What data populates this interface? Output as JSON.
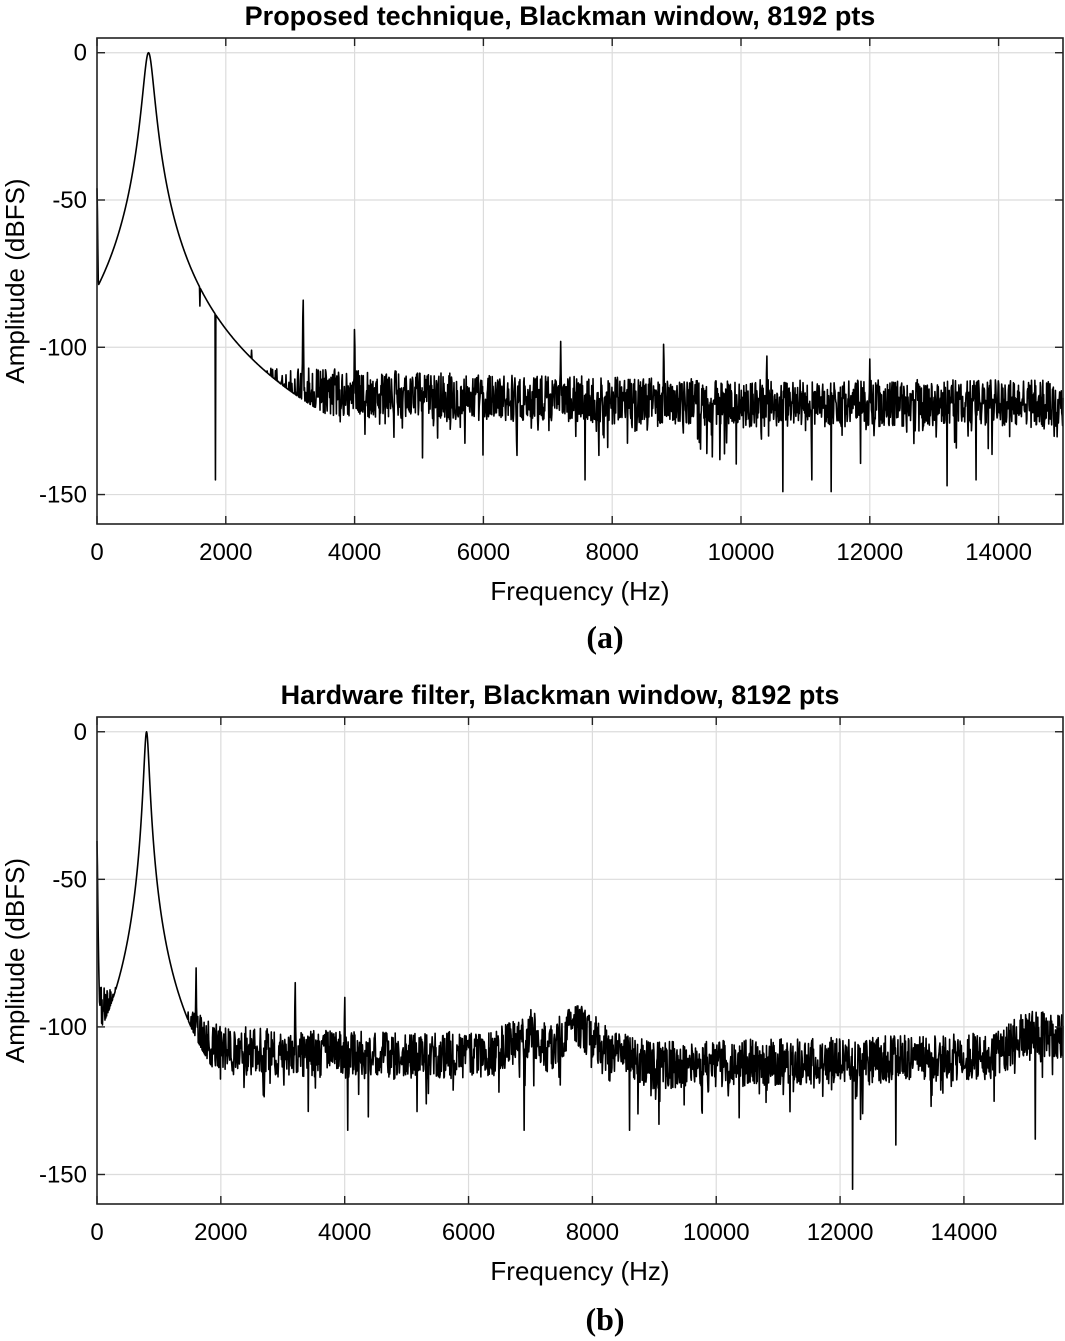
{
  "chart_data": [
    {
      "type": "line",
      "title": "Proposed technique, Blackman window, 8192 pts",
      "xlabel": "Frequency (Hz)",
      "ylabel": "Amplitude (dBFS)",
      "caption": "(a)",
      "xlim": [
        0,
        15000
      ],
      "ylim": [
        -160,
        5
      ],
      "xticks": [
        0,
        2000,
        4000,
        6000,
        8000,
        10000,
        12000,
        14000
      ],
      "yticks": [
        0,
        -50,
        -100,
        -150
      ],
      "grid": true,
      "noise_floor": [
        {
          "x": 0,
          "y": -113
        },
        {
          "x": 2000,
          "y": -114
        },
        {
          "x": 6000,
          "y": -117
        },
        {
          "x": 10000,
          "y": -119
        },
        {
          "x": 15000,
          "y": -119
        }
      ],
      "peaks": [
        {
          "x": 0,
          "y": -46,
          "w": 15
        },
        {
          "x": 800,
          "y": 0,
          "w": 140
        },
        {
          "x": 1600,
          "y": -86,
          "w": 12
        },
        {
          "x": 2400,
          "y": -101,
          "w": 12
        },
        {
          "x": 3200,
          "y": -84,
          "w": 12
        },
        {
          "x": 4000,
          "y": -94,
          "w": 12
        },
        {
          "x": 7200,
          "y": -98,
          "w": 12
        },
        {
          "x": 8800,
          "y": -99,
          "w": 12
        },
        {
          "x": 10400,
          "y": -103,
          "w": 12
        },
        {
          "x": 12000,
          "y": -104,
          "w": 12
        }
      ],
      "dips": [
        {
          "x": 1840,
          "y": -145
        },
        {
          "x": 7580,
          "y": -145
        },
        {
          "x": 10650,
          "y": -149
        },
        {
          "x": 11100,
          "y": -145
        },
        {
          "x": 11400,
          "y": -149
        },
        {
          "x": 13200,
          "y": -147
        },
        {
          "x": 13650,
          "y": -145
        }
      ]
    },
    {
      "type": "line",
      "title": "Hardware filter, Blackman window, 8192 pts",
      "xlabel": "Frequency (Hz)",
      "ylabel": "Amplitude (dBFS)",
      "caption": "(b)",
      "xlim": [
        0,
        15600
      ],
      "ylim": [
        -160,
        5
      ],
      "xticks": [
        0,
        2000,
        4000,
        6000,
        8000,
        10000,
        12000,
        14000
      ],
      "yticks": [
        0,
        -50,
        -100,
        -150
      ],
      "grid": true,
      "noise_floor": [
        {
          "x": 0,
          "y": -95
        },
        {
          "x": 500,
          "y": -90
        },
        {
          "x": 1200,
          "y": -98
        },
        {
          "x": 2000,
          "y": -108
        },
        {
          "x": 5000,
          "y": -110
        },
        {
          "x": 6400,
          "y": -109
        },
        {
          "x": 7000,
          "y": -102
        },
        {
          "x": 7300,
          "y": -108
        },
        {
          "x": 7700,
          "y": -98
        },
        {
          "x": 8300,
          "y": -109
        },
        {
          "x": 9000,
          "y": -113
        },
        {
          "x": 14500,
          "y": -110
        },
        {
          "x": 15000,
          "y": -102
        },
        {
          "x": 15600,
          "y": -103
        }
      ],
      "peaks": [
        {
          "x": 0,
          "y": -37,
          "w": 15
        },
        {
          "x": 800,
          "y": 0,
          "w": 70
        },
        {
          "x": 1600,
          "y": -80,
          "w": 12
        },
        {
          "x": 2400,
          "y": -100,
          "w": 12
        },
        {
          "x": 3200,
          "y": -85,
          "w": 12
        },
        {
          "x": 4000,
          "y": -90,
          "w": 12
        }
      ],
      "dips": [
        {
          "x": 4050,
          "y": -135
        },
        {
          "x": 6900,
          "y": -135
        },
        {
          "x": 8600,
          "y": -135
        },
        {
          "x": 12200,
          "y": -155
        },
        {
          "x": 12900,
          "y": -140
        },
        {
          "x": 15150,
          "y": -138
        }
      ]
    }
  ]
}
